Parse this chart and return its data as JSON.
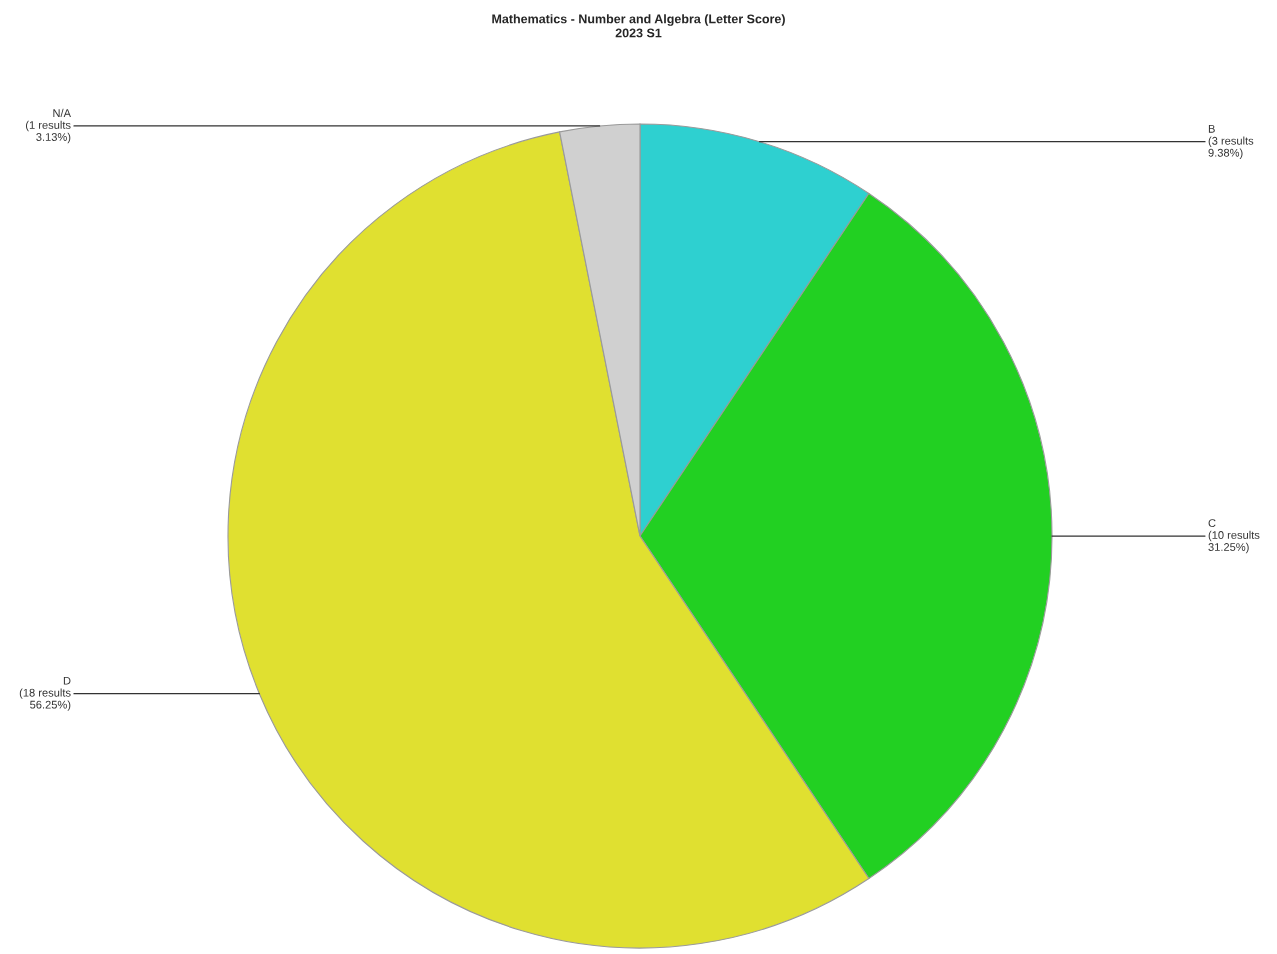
{
  "chart_data": {
    "type": "pie",
    "title": "Mathematics - Number and Algebra (Letter Score)",
    "subtitle": "2023 S1",
    "categories": [
      "B",
      "C",
      "D",
      "N/A"
    ],
    "values": [
      3,
      10,
      18,
      1
    ],
    "value_labels": [
      "(3 results\n9.38%)",
      "(10 results\n31.25%)",
      "(18 results\n56.25%)",
      "(1 results\n3.13%)"
    ],
    "colors": [
      "#2ed0d0",
      "#22d022",
      "#e0e030",
      "#d0d0d0"
    ],
    "legend": false
  }
}
